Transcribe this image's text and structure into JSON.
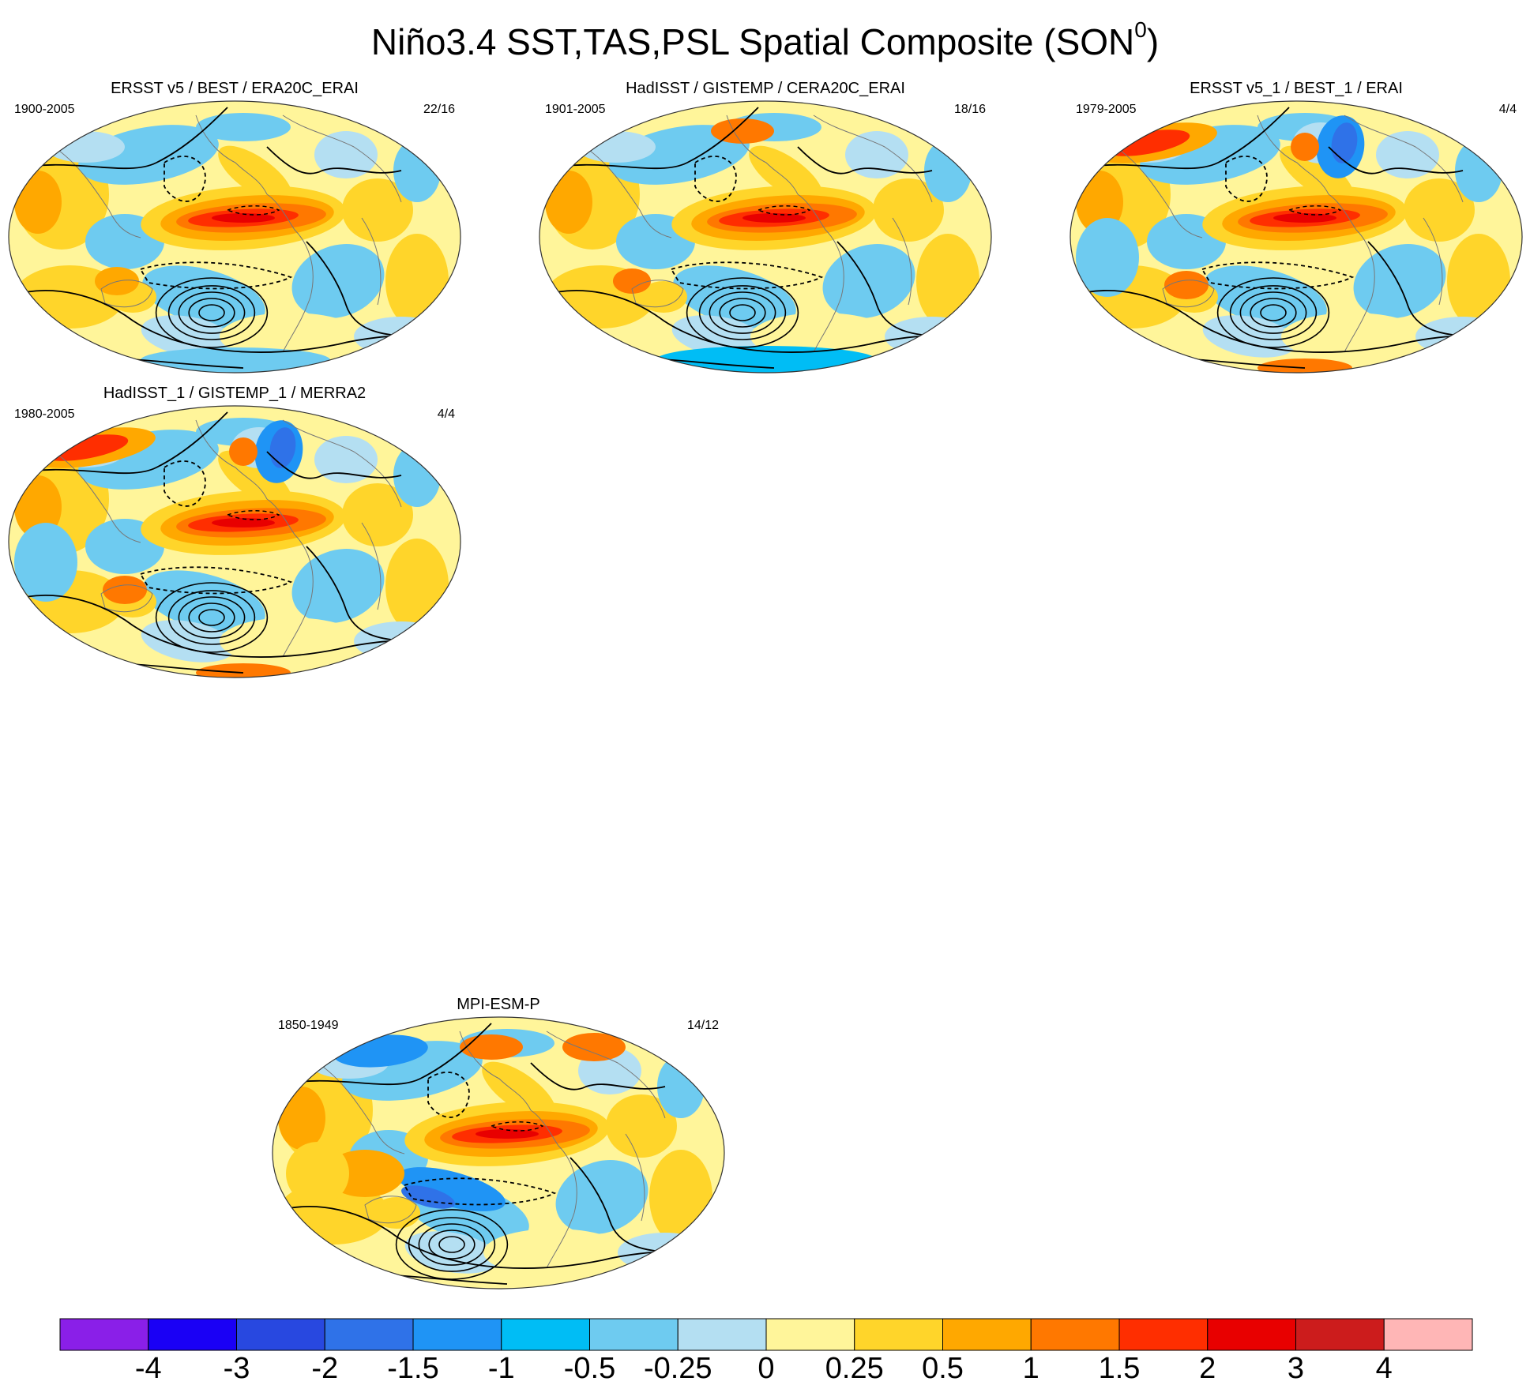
{
  "title": "Niño3.4 SST,TAS,PSL Spatial Composite (SON",
  "title_superscript": "0",
  "title_close": ")",
  "panels": [
    {
      "title": "ERSST v5 / BEST / ERA20C_ERAI",
      "period": "1900-2005",
      "count": "22/16"
    },
    {
      "title": "HadISST / GISTEMP / CERA20C_ERAI",
      "period": "1901-2005",
      "count": "18/16"
    },
    {
      "title": "ERSST v5_1 / BEST_1 / ERAI",
      "period": "1979-2005",
      "count": "4/4"
    },
    {
      "title": "HadISST_1 / GISTEMP_1 / MERRA2",
      "period": "1980-2005",
      "count": "4/4"
    },
    {
      "title": "MPI-ESM-P",
      "period": "1850-1949",
      "count": "14/12"
    }
  ],
  "colorbar": {
    "levels": [
      "-4",
      "-3",
      "-2",
      "-1.5",
      "-1",
      "-0.5",
      "-0.25",
      "0",
      "0.25",
      "0.5",
      "1",
      "1.5",
      "2",
      "3",
      "4"
    ],
    "colors": [
      "#8a1fe8",
      "#1a00f5",
      "#2848e0",
      "#2f72e8",
      "#1f94f5",
      "#00bdf5",
      "#6ecbf0",
      "#b4dff2",
      "#fff59a",
      "#ffd52a",
      "#ffa800",
      "#ff7800",
      "#ff2e00",
      "#e80000",
      "#cc1c1c",
      "#ffb6b6"
    ]
  }
}
